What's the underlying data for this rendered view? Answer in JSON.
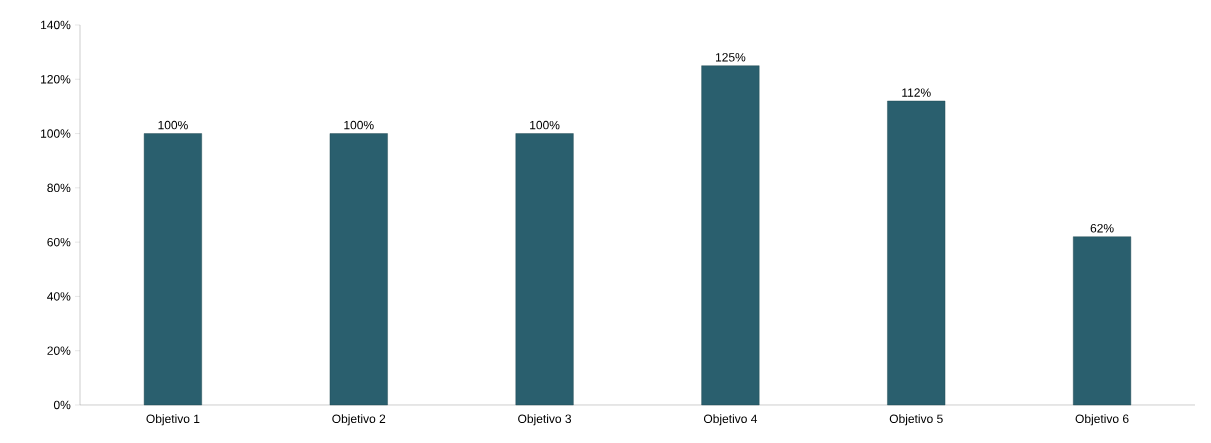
{
  "chart_data": {
    "type": "bar",
    "categories": [
      "Objetivo 1",
      "Objetivo 2",
      "Objetivo 3",
      "Objetivo 4",
      "Objetivo 5",
      "Objetivo 6"
    ],
    "values": [
      100,
      100,
      100,
      125,
      112,
      62
    ],
    "value_labels": [
      "100%",
      "100%",
      "100%",
      "125%",
      "112%",
      "62%"
    ],
    "color": "#2a5f6e",
    "ylim": [
      0,
      140
    ],
    "yticks": [
      {
        "value": 0,
        "label": "0%"
      },
      {
        "value": 20,
        "label": "20%"
      },
      {
        "value": 40,
        "label": "40%"
      },
      {
        "value": 60,
        "label": "60%"
      },
      {
        "value": 80,
        "label": "80%"
      },
      {
        "value": 100,
        "label": "100%"
      },
      {
        "value": 120,
        "label": "120%"
      },
      {
        "value": 140,
        "label": "140%"
      }
    ],
    "grid": false
  }
}
